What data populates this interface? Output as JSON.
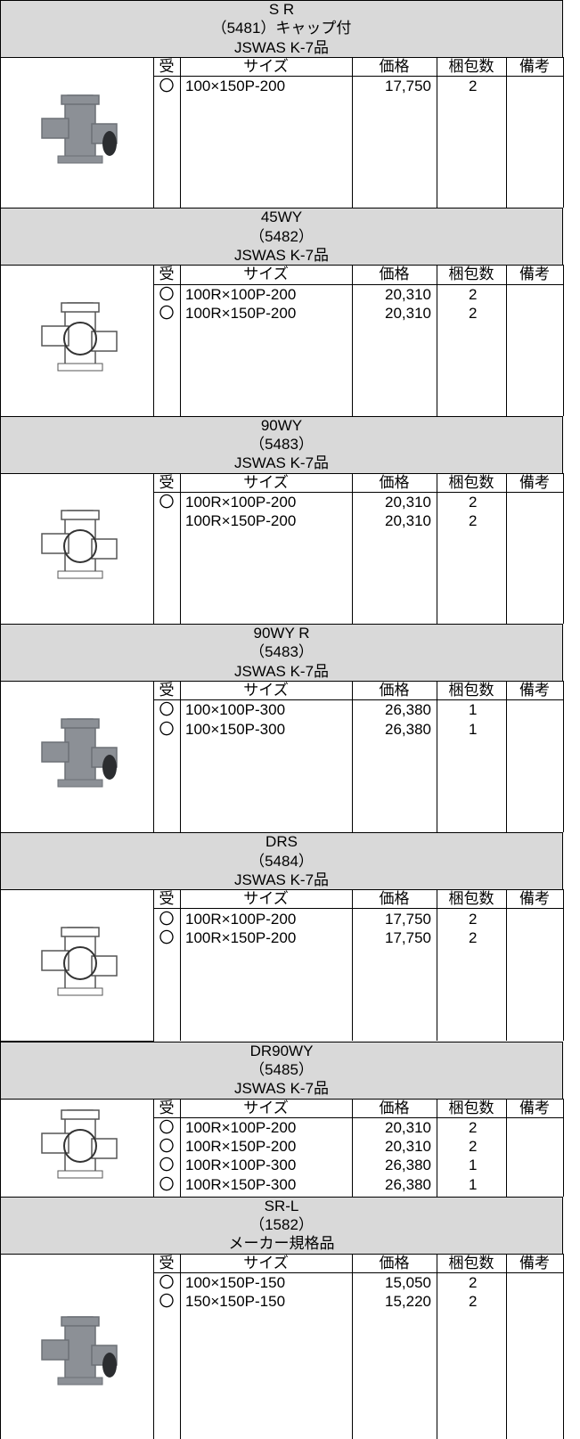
{
  "columns": [
    "受",
    "サイズ",
    "価格",
    "梱包数",
    "備考"
  ],
  "sections": [
    {
      "title": "S R",
      "code": "（5481）キャップ付",
      "standard": "JSWAS K-7品",
      "rows": [
        {
          "mark": "〇",
          "size": "100×150P-200",
          "price": "17,750",
          "qty": "2"
        }
      ]
    },
    {
      "title": "45WY",
      "code": "（5482）",
      "standard": "JSWAS K-7品",
      "rows": [
        {
          "mark": "〇",
          "size": "100R×100P-200",
          "price": "20,310",
          "qty": "2"
        },
        {
          "mark": "〇",
          "size": "100R×150P-200",
          "price": "20,310",
          "qty": "2"
        }
      ]
    },
    {
      "title": "90WY",
      "code": "（5483）",
      "standard": "JSWAS K-7品",
      "rows": [
        {
          "mark": "〇",
          "size": "100R×100P-200",
          "price": "20,310",
          "qty": "2"
        },
        {
          "size": "100R×150P-200",
          "price": "20,310",
          "qty": "2"
        }
      ]
    },
    {
      "title": "90WY R",
      "code": "（5483）",
      "standard": "JSWAS K-7品",
      "rows": [
        {
          "mark": "〇",
          "size": "100×100P-300",
          "price": "26,380",
          "qty": "1"
        },
        {
          "mark": "〇",
          "size": "100×150P-300",
          "price": "26,380",
          "qty": "1"
        }
      ]
    },
    {
      "title": "DRS",
      "code": "（5484）",
      "standard": "JSWAS K-7品",
      "rows": [
        {
          "mark": "〇",
          "size": "100R×100P-200",
          "price": "17,750",
          "qty": "2"
        },
        {
          "mark": "〇",
          "size": "100R×150P-200",
          "price": "17,750",
          "qty": "2"
        }
      ]
    },
    {
      "title": "DR90WY",
      "code": "（5485）",
      "standard": "JSWAS K-7品",
      "rows": [
        {
          "mark": "〇",
          "size": "100R×100P-200",
          "price": "20,310",
          "qty": "2"
        },
        {
          "mark": "〇",
          "size": "100R×150P-200",
          "price": "20,310",
          "qty": "2"
        },
        {
          "mark": "〇",
          "size": "100R×100P-300",
          "price": "26,380",
          "qty": "1"
        },
        {
          "mark": "〇",
          "size": "100R×150P-300",
          "price": "26,380",
          "qty": "1"
        }
      ]
    },
    {
      "title": "SR-L",
      "code": "（1582）",
      "standard": "メーカー規格品",
      "rows": [
        {
          "mark": "〇",
          "size": "100×150P-150",
          "price": "15,050",
          "qty": "2"
        },
        {
          "mark": "〇",
          "size": "150×150P-150",
          "price": "15,220",
          "qty": "2"
        }
      ]
    }
  ]
}
